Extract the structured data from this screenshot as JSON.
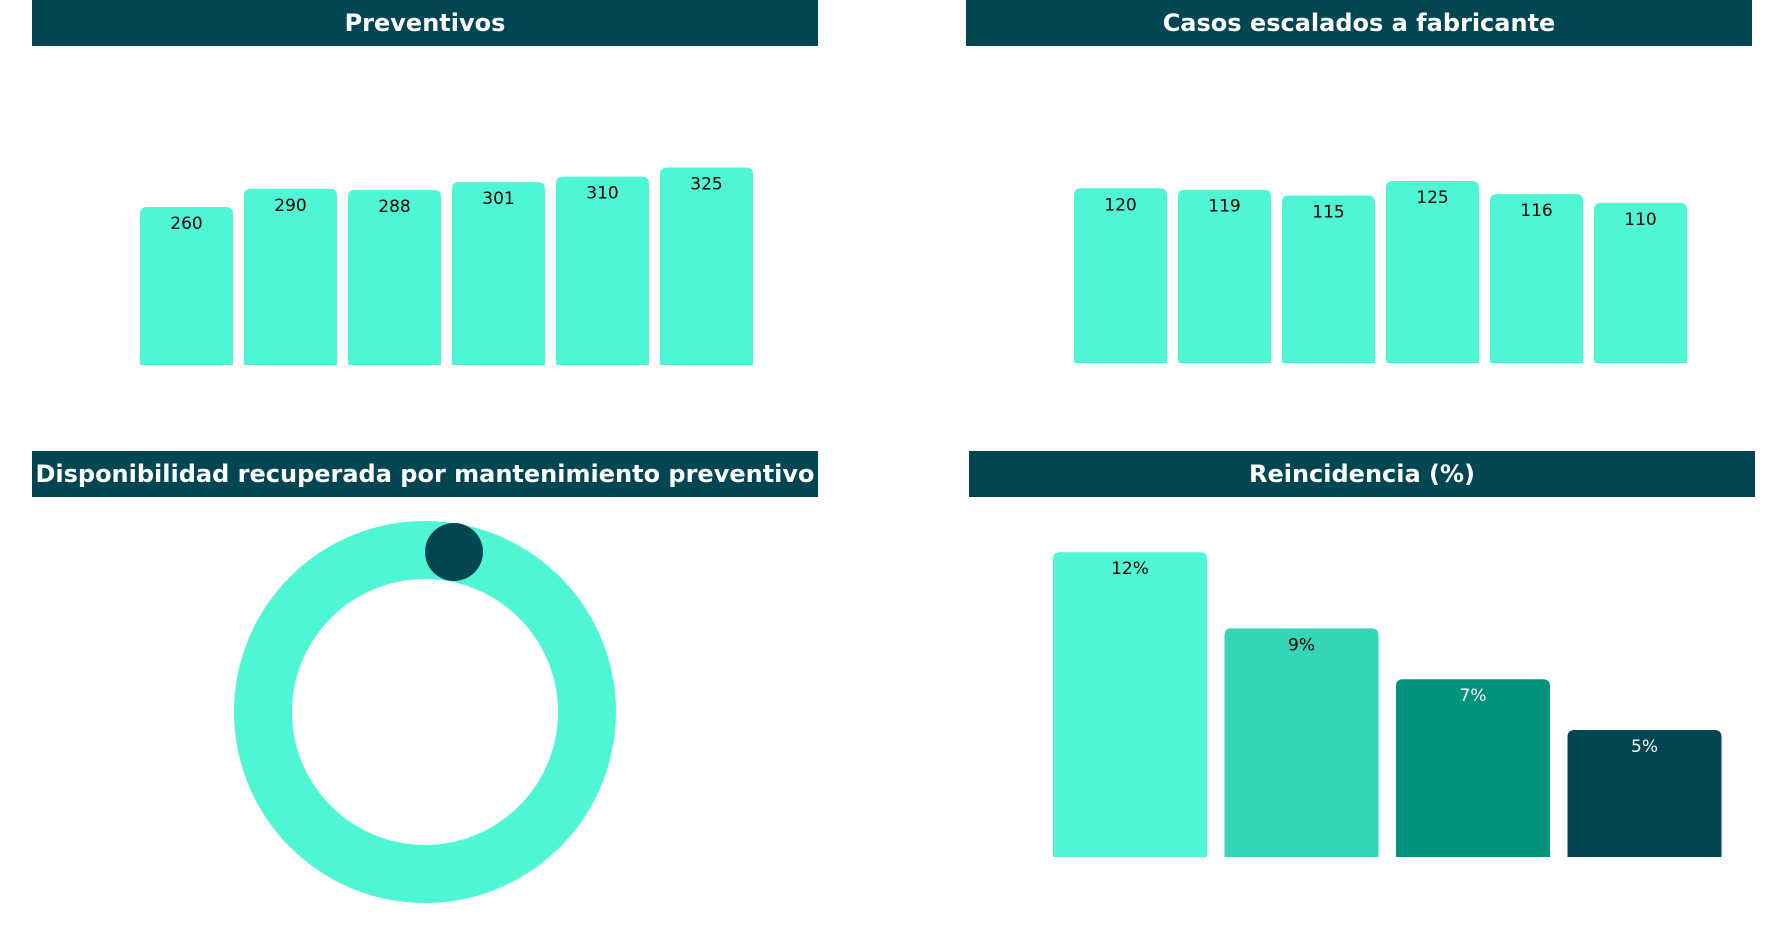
{
  "colors": {
    "header_bg": "#034653",
    "header_text": "#ffffff",
    "bar_primary": "#4ef6d4",
    "bar_label": "#000000"
  },
  "chart_data": [
    {
      "type": "bar",
      "title": "Preventivos",
      "values": [
        260,
        290,
        288,
        301,
        310,
        325
      ],
      "labels": [
        "260",
        "290",
        "288",
        "301",
        "310",
        "325"
      ],
      "color": "#4ef6d4"
    },
    {
      "type": "bar",
      "title": "Casos escalados a fabricante",
      "values": [
        120,
        119,
        115,
        125,
        116,
        110
      ],
      "labels": [
        "120",
        "119",
        "115",
        "125",
        "116",
        "110"
      ],
      "color": "#4ef6d4"
    },
    {
      "type": "donut",
      "title": "Disponibilidad recuperada por mantenimiento preventivo",
      "ring_color": "#4ef6d4",
      "marker_color": "#034653"
    },
    {
      "type": "bar",
      "title": "Reincidencia (%)",
      "values": [
        12,
        9,
        7,
        5
      ],
      "labels": [
        "12%",
        "9%",
        "7%",
        "5%"
      ],
      "colors": [
        "#4ef6d4",
        "#34d6b6",
        "#02937c",
        "#034653"
      ],
      "label_colors": [
        "#000000",
        "#000000",
        "#ffffff",
        "#ffffff"
      ]
    }
  ]
}
